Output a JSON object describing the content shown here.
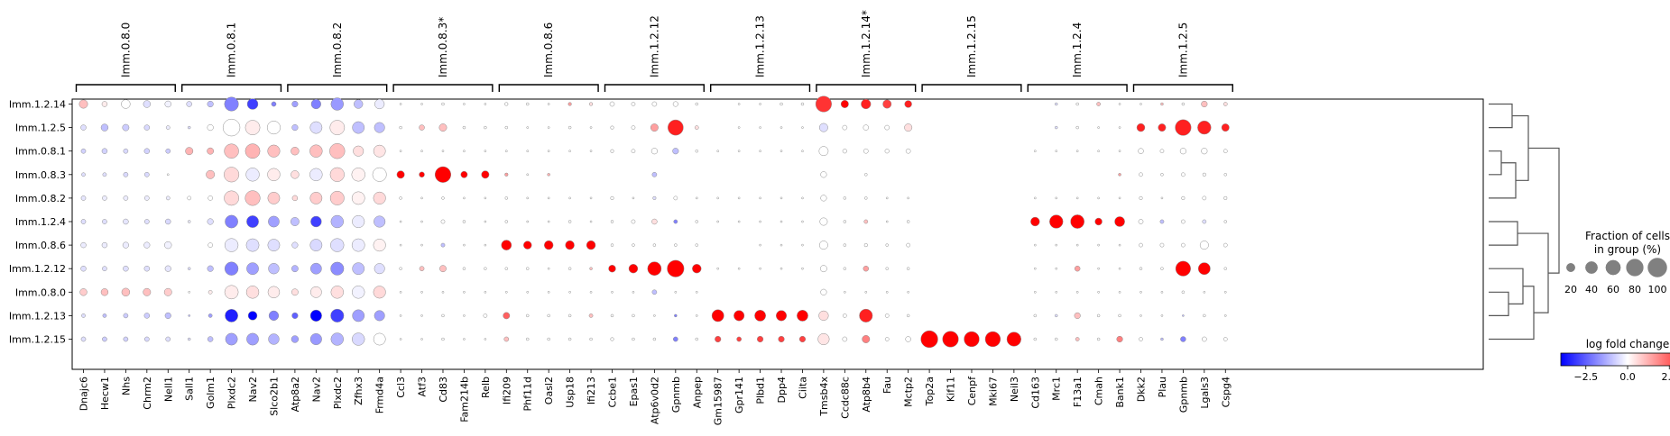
{
  "chart_data": {
    "type": "dotplot",
    "groups": [
      {
        "label": "Imm.0.8.0",
        "genes": [
          "Dnajc6",
          "Hecw1",
          "Nhs",
          "Chrm2",
          "Nell1"
        ]
      },
      {
        "label": "Imm.0.8.1",
        "genes": [
          "Sall1",
          "Golm1",
          "Plxdc2",
          "Nav2",
          "Slco2b1"
        ]
      },
      {
        "label": "Imm.0.8.2",
        "genes": [
          "Atp8a2",
          "Nav2",
          "Plxdc2",
          "Zfhx3",
          "Frmd4a"
        ]
      },
      {
        "label": "Imm.0.8.3*",
        "genes": [
          "Ccl3",
          "Atf3",
          "Cd83",
          "Fam214b",
          "Relb"
        ]
      },
      {
        "label": "Imm.0.8.6",
        "genes": [
          "Ifi209",
          "Phf11d",
          "Oasl2",
          "Usp18",
          "Ifi213"
        ]
      },
      {
        "label": "Imm.1.2.12",
        "genes": [
          "Ccbe1",
          "Epas1",
          "Atp6v0d2",
          "Gpnmb",
          "Anpep"
        ]
      },
      {
        "label": "Imm.1.2.13",
        "genes": [
          "Gm15987",
          "Gpr141",
          "Plbd1",
          "Dpp4",
          "Ciita"
        ]
      },
      {
        "label": "Imm.1.2.14*",
        "genes": [
          "Tmsb4x",
          "Ccdc88c",
          "Atp8b4",
          "Fau",
          "Mctp2"
        ]
      },
      {
        "label": "Imm.1.2.15",
        "genes": [
          "Top2a",
          "Kif11",
          "Cenpf",
          "Mki67",
          "Neil3"
        ]
      },
      {
        "label": "Imm.1.2.4",
        "genes": [
          "Cd163",
          "Mrc1",
          "F13a1",
          "Cmah",
          "Bank1"
        ]
      },
      {
        "label": "Imm.1.2.5",
        "genes": [
          "Dkk2",
          "Plau",
          "Gpnmb",
          "Lgals3",
          "Cspg4"
        ]
      }
    ],
    "rows": [
      "Imm.1.2.14",
      "Imm.1.2.5",
      "Imm.0.8.1",
      "Imm.0.8.3",
      "Imm.0.8.2",
      "Imm.1.2.4",
      "Imm.0.8.6",
      "Imm.1.2.12",
      "Imm.0.8.0",
      "Imm.1.2.13",
      "Imm.1.2.15"
    ],
    "fraction": [
      [
        20,
        8,
        22,
        14,
        11,
        8,
        10,
        55,
        32,
        6,
        10,
        26,
        44,
        22,
        26,
        1,
        1,
        2,
        1,
        1,
        3,
        2,
        1,
        3,
        3,
        6,
        4,
        6,
        7,
        2,
        0,
        1,
        1,
        2,
        2,
        70,
        16,
        26,
        20,
        14,
        0,
        0,
        0,
        0,
        0,
        0,
        2,
        2,
        4,
        1,
        1,
        2,
        2,
        10,
        4
      ],
      [
        8,
        14,
        12,
        8,
        4,
        2,
        10,
        80,
        60,
        48,
        10,
        40,
        60,
        40,
        30,
        2,
        8,
        16,
        2,
        2,
        2,
        1,
        1,
        2,
        1,
        3,
        4,
        16,
        66,
        4,
        0,
        1,
        1,
        1,
        1,
        20,
        6,
        8,
        6,
        16,
        0,
        0,
        0,
        0,
        0,
        0,
        2,
        2,
        1,
        1,
        18,
        16,
        70,
        50,
        16
      ],
      [
        6,
        8,
        6,
        8,
        6,
        16,
        12,
        58,
        60,
        42,
        18,
        44,
        64,
        30,
        40,
        1,
        1,
        1,
        1,
        1,
        1,
        1,
        1,
        1,
        1,
        3,
        4,
        10,
        10,
        2,
        1,
        1,
        1,
        1,
        1,
        24,
        5,
        6,
        5,
        6,
        0,
        0,
        0,
        0,
        0,
        1,
        1,
        1,
        1,
        1,
        8,
        4,
        10,
        10,
        4
      ],
      [
        4,
        4,
        6,
        6,
        1,
        0,
        20,
        62,
        50,
        44,
        18,
        44,
        56,
        50,
        54,
        16,
        8,
        70,
        12,
        16,
        3,
        1,
        2,
        0,
        0,
        0,
        0,
        6,
        0,
        0,
        0,
        0,
        0,
        0,
        0,
        10,
        0,
        2,
        0,
        0,
        0,
        0,
        0,
        0,
        0,
        0,
        0,
        0,
        0,
        2,
        4,
        2,
        4,
        3,
        2
      ],
      [
        6,
        6,
        6,
        6,
        4,
        4,
        6,
        60,
        62,
        40,
        8,
        40,
        54,
        46,
        42,
        2,
        1,
        2,
        1,
        1,
        2,
        1,
        1,
        1,
        1,
        3,
        1,
        3,
        4,
        1,
        1,
        1,
        1,
        1,
        1,
        10,
        2,
        2,
        1,
        1,
        0,
        0,
        0,
        0,
        0,
        1,
        1,
        1,
        1,
        1,
        3,
        1,
        3,
        4,
        3
      ],
      [
        6,
        6,
        8,
        6,
        8,
        2,
        10,
        46,
        40,
        34,
        20,
        32,
        44,
        42,
        36,
        1,
        1,
        4,
        2,
        1,
        2,
        1,
        1,
        2,
        1,
        2,
        4,
        8,
        4,
        2,
        1,
        1,
        1,
        1,
        1,
        16,
        2,
        4,
        1,
        2,
        0,
        0,
        0,
        0,
        0,
        22,
        50,
        52,
        14,
        28,
        6,
        4,
        4,
        4,
        2
      ],
      [
        8,
        8,
        10,
        10,
        14,
        0,
        6,
        50,
        46,
        40,
        10,
        40,
        50,
        46,
        42,
        1,
        1,
        4,
        1,
        1,
        28,
        18,
        22,
        22,
        22,
        2,
        2,
        2,
        2,
        2,
        0,
        0,
        1,
        1,
        1,
        20,
        2,
        3,
        2,
        4,
        0,
        0,
        0,
        0,
        0,
        1,
        1,
        1,
        1,
        1,
        4,
        4,
        4,
        20,
        4
      ],
      [
        8,
        6,
        8,
        8,
        10,
        2,
        10,
        50,
        40,
        32,
        12,
        34,
        48,
        40,
        30,
        2,
        6,
        12,
        2,
        2,
        2,
        2,
        1,
        2,
        2,
        14,
        22,
        52,
        78,
        22,
        1,
        1,
        1,
        1,
        1,
        12,
        2,
        8,
        2,
        2,
        0,
        0,
        0,
        0,
        0,
        1,
        1,
        8,
        1,
        1,
        2,
        2,
        62,
        40,
        2
      ],
      [
        14,
        14,
        18,
        16,
        16,
        1,
        4,
        52,
        44,
        38,
        12,
        34,
        44,
        44,
        42,
        1,
        1,
        1,
        1,
        1,
        1,
        1,
        1,
        1,
        1,
        1,
        1,
        6,
        1,
        1,
        0,
        0,
        0,
        0,
        0,
        10,
        1,
        1,
        1,
        1,
        0,
        0,
        0,
        0,
        0,
        1,
        1,
        1,
        1,
        1,
        1,
        1,
        2,
        1,
        1
      ],
      [
        4,
        4,
        6,
        8,
        10,
        1,
        4,
        46,
        22,
        26,
        10,
        36,
        48,
        40,
        30,
        1,
        1,
        2,
        1,
        4,
        12,
        2,
        2,
        2,
        4,
        2,
        2,
        1,
        2,
        1,
        40,
        30,
        34,
        30,
        34,
        26,
        4,
        48,
        4,
        2,
        0,
        0,
        0,
        0,
        0,
        2,
        2,
        10,
        2,
        2,
        1,
        1,
        1,
        2,
        1
      ],
      [
        6,
        6,
        6,
        6,
        6,
        2,
        8,
        40,
        40,
        32,
        14,
        36,
        44,
        44,
        40,
        1,
        1,
        2,
        1,
        1,
        6,
        2,
        2,
        2,
        2,
        3,
        2,
        2,
        6,
        2,
        10,
        6,
        10,
        10,
        10,
        36,
        6,
        16,
        4,
        8,
        80,
        70,
        64,
        64,
        56,
        2,
        2,
        4,
        2,
        10,
        4,
        2,
        8,
        6,
        4
      ]
    ],
    "logfc": [
      [
        1,
        0.3,
        0,
        -0.5,
        -0.2,
        -0.5,
        -1,
        -2,
        -3,
        -2,
        -1.5,
        -2,
        -1.6,
        -1,
        -0.3,
        0,
        0,
        0,
        0,
        0,
        0,
        0,
        0,
        1.5,
        0.5,
        0,
        0,
        0,
        0,
        0,
        0,
        0,
        0,
        0,
        0,
        3.2,
        4,
        3.5,
        3,
        3.5,
        0,
        0,
        0,
        0,
        0,
        0,
        -0.5,
        0,
        1,
        0,
        0,
        1,
        0,
        1,
        0.5
      ],
      [
        -0.5,
        -1,
        -0.8,
        -0.6,
        -0.3,
        -0.5,
        0,
        0,
        0.3,
        0,
        -1,
        -0.5,
        0.3,
        -1,
        -1,
        0,
        1,
        1,
        0,
        0,
        0,
        0,
        0,
        0,
        0,
        0,
        0,
        1.5,
        3.5,
        0.5,
        0,
        0,
        0,
        0,
        0,
        -0.5,
        0,
        0,
        0,
        0.5,
        0,
        0,
        0,
        0,
        0,
        0,
        -0.5,
        0,
        0,
        0,
        3.5,
        3.5,
        3.5,
        3.5,
        3.5
      ],
      [
        -0.7,
        -0.7,
        -0.6,
        -0.7,
        -0.8,
        1.2,
        1.2,
        1,
        1.2,
        1,
        1,
        1,
        1,
        0.5,
        0.4,
        0,
        0,
        0,
        0,
        0,
        0,
        0,
        0,
        0,
        0,
        0,
        0,
        0,
        -1,
        0,
        0,
        0,
        0,
        0,
        0,
        0,
        0,
        0,
        0,
        0,
        0,
        0,
        0,
        0,
        0,
        0,
        0,
        0,
        0,
        0,
        0,
        0,
        0,
        0,
        0
      ],
      [
        -0.5,
        -0.5,
        -0.6,
        -0.6,
        0,
        0,
        1,
        0.6,
        -0.3,
        0.3,
        0.5,
        -0.3,
        0.6,
        0.2,
        0,
        4.5,
        4.5,
        4.5,
        4.5,
        4.5,
        1.5,
        0,
        1.2,
        0,
        0,
        0,
        0,
        -1,
        0,
        0,
        0,
        0,
        0,
        0,
        0,
        0,
        0,
        0,
        0,
        0,
        0,
        0,
        0,
        0,
        0,
        0,
        0,
        0,
        0,
        1.5,
        0,
        0,
        0,
        0,
        0
      ],
      [
        -0.4,
        -0.3,
        -0.3,
        -0.3,
        -0.3,
        0,
        0,
        0.6,
        1,
        0.8,
        0.6,
        0.8,
        0.8,
        0.2,
        0.6,
        0,
        0,
        0,
        0,
        0,
        0,
        0,
        0,
        0,
        0,
        0,
        0,
        -0.5,
        0,
        0,
        0,
        0,
        0,
        0,
        0,
        0,
        0,
        0,
        0,
        0,
        0,
        0,
        0,
        0,
        0,
        0,
        0,
        0,
        0,
        0,
        0,
        0,
        0,
        0,
        0
      ],
      [
        -0.5,
        -0.5,
        -0.4,
        -0.5,
        -0.6,
        -0.3,
        -0.5,
        -2,
        -3,
        -1.5,
        -1,
        -3,
        -1.2,
        -0.3,
        -1,
        0,
        0,
        0,
        0,
        0,
        0,
        0,
        0,
        0,
        0,
        0,
        0,
        0.5,
        -2,
        0,
        0,
        0,
        0,
        0,
        0,
        0,
        0,
        1,
        0,
        0,
        0,
        0,
        0,
        0,
        0,
        4.5,
        4.5,
        4.5,
        4.5,
        4.5,
        0,
        -1,
        0,
        -0.5,
        0
      ],
      [
        -0.3,
        -0.3,
        -0.3,
        -0.3,
        -0.2,
        0,
        0,
        -0.3,
        -0.5,
        -0.5,
        -0.5,
        -0.6,
        -0.5,
        -0.3,
        0.2,
        0,
        0,
        -1,
        0,
        0,
        4.5,
        4.5,
        4.5,
        4.5,
        4.5,
        0,
        0,
        0,
        0,
        0,
        0,
        0,
        0,
        0,
        0,
        0,
        0,
        0,
        0,
        0,
        0,
        0,
        0,
        0,
        0,
        0,
        0,
        0,
        0,
        0,
        0,
        0,
        0,
        0,
        0
      ],
      [
        -0.5,
        -0.5,
        -0.5,
        -0.5,
        -0.4,
        -0.5,
        -1,
        -2,
        -1.5,
        -1,
        -1.2,
        -1.5,
        -1.8,
        -1,
        -0.5,
        0,
        1,
        1,
        0,
        0,
        0,
        0,
        0,
        0,
        1,
        4,
        4,
        4,
        4,
        4,
        0,
        0,
        0,
        0,
        0,
        0,
        0,
        1.5,
        0,
        0,
        0,
        0,
        0,
        0,
        0,
        0,
        0,
        1.5,
        0,
        0,
        0,
        0,
        4,
        4,
        0
      ],
      [
        0.8,
        1,
        1,
        1,
        0.8,
        0,
        0.3,
        0.3,
        0.5,
        0.3,
        0.5,
        0.3,
        0.5,
        -0.2,
        0.6,
        0,
        0,
        0,
        0,
        0,
        0,
        0,
        0,
        0,
        0,
        0,
        0,
        -1,
        0,
        0,
        0,
        0,
        0,
        0,
        0,
        0,
        0,
        0,
        0,
        0,
        0,
        0,
        0,
        0,
        0,
        0,
        0,
        0,
        0,
        0,
        0,
        0,
        0,
        0,
        0
      ],
      [
        -0.5,
        -1,
        -0.8,
        -0.8,
        -1,
        -1,
        -1.5,
        -3.5,
        -4,
        -2,
        -2.5,
        -4,
        -3,
        -1.5,
        -1.5,
        0,
        0,
        0,
        0,
        0,
        2.5,
        0,
        0,
        0,
        1,
        0,
        0,
        0,
        -2,
        0,
        4.5,
        4.5,
        4.5,
        4.5,
        4.5,
        0.5,
        0,
        3.5,
        0,
        0,
        0,
        0,
        0,
        0,
        0,
        0,
        -0.5,
        1,
        0,
        0,
        0,
        0,
        -1,
        0,
        0
      ],
      [
        -0.5,
        -0.8,
        -0.7,
        -0.6,
        -0.5,
        -0.5,
        -1,
        -1.5,
        -1.5,
        -1.2,
        -1.5,
        -1.6,
        -1.2,
        -0.6,
        0,
        0,
        0,
        0,
        0,
        0,
        1,
        0,
        0,
        0,
        0,
        0,
        0,
        0,
        -2,
        0,
        3,
        3,
        3,
        3,
        3,
        0.4,
        0,
        2,
        0,
        0,
        4.5,
        4.5,
        4.5,
        4.5,
        4.5,
        0,
        0,
        1,
        0,
        2,
        0,
        -1,
        -2,
        0,
        0
      ]
    ],
    "size_legend": {
      "title_line1": "Fraction of cells",
      "title_line2": "in group (%)",
      "ticks": [
        20,
        40,
        60,
        80,
        100
      ]
    },
    "color_legend": {
      "title": "log fold change",
      "ticks": [
        "−2.5",
        "0.0",
        "2.5"
      ],
      "tick_values": [
        -2.5,
        0,
        2.5
      ],
      "range": [
        -4,
        4
      ],
      "colormap": "bwr",
      "colors": [
        "#0000ff",
        "#ffffff",
        "#ff0000"
      ]
    },
    "dendrogram": true,
    "dot_edge_color": "#8c8c8c"
  }
}
